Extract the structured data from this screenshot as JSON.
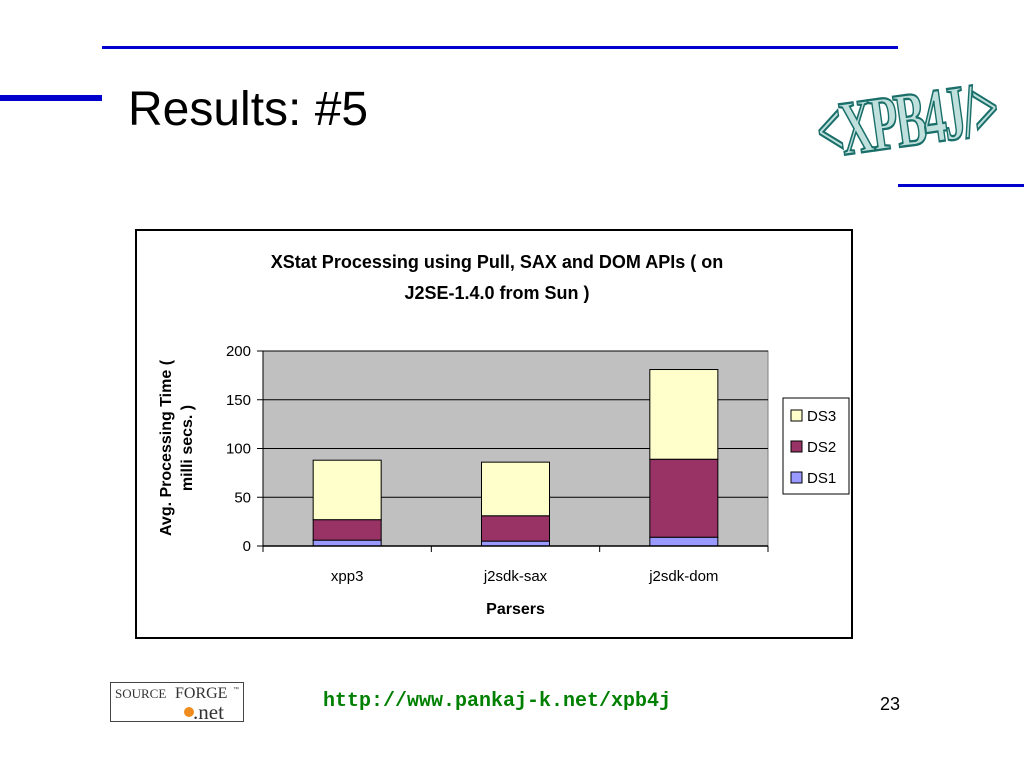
{
  "slide": {
    "title": "Results: #5",
    "logo_text": "<XPB4J/>",
    "footer_url": "http://www.pankaj-k.net/xpb4j",
    "page_number": "23",
    "sourceforge": {
      "word_source": "SOURCE",
      "word_forge": "FORGE",
      "word_net": ".net",
      "tm": "™"
    }
  },
  "colors": {
    "accent_rule": "#0000cc",
    "logo_fill": "#bfe0dc",
    "logo_stroke": "#1a6f6a",
    "url_green": "#008000",
    "plot_bg": "#c0c0c0",
    "DS1": "#9999ff",
    "DS2": "#993366",
    "DS3": "#ffffcc"
  },
  "chart_data": {
    "type": "bar",
    "stacked": true,
    "title": "XStat Processing using Pull, SAX and DOM APIs ( on J2SE-1.4.0 from Sun )",
    "title_lines": [
      "XStat Processing using Pull, SAX and DOM APIs ( on",
      "J2SE-1.4.0 from Sun )"
    ],
    "xlabel": "Parsers",
    "ylabel": "Avg. Processing Time ( milli secs. )",
    "ylabel_lines": [
      "Avg. Processing Time (",
      "milli secs. )"
    ],
    "categories": [
      "xpp3",
      "j2sdk-sax",
      "j2sdk-dom"
    ],
    "ylim": [
      0,
      200
    ],
    "yticks": [
      0,
      50,
      100,
      150,
      200
    ],
    "grid": true,
    "legend_position": "right",
    "series": [
      {
        "name": "DS1",
        "values": [
          6,
          5,
          9
        ]
      },
      {
        "name": "DS2",
        "values": [
          21,
          26,
          80
        ]
      },
      {
        "name": "DS3",
        "values": [
          61,
          55,
          92
        ]
      }
    ]
  }
}
